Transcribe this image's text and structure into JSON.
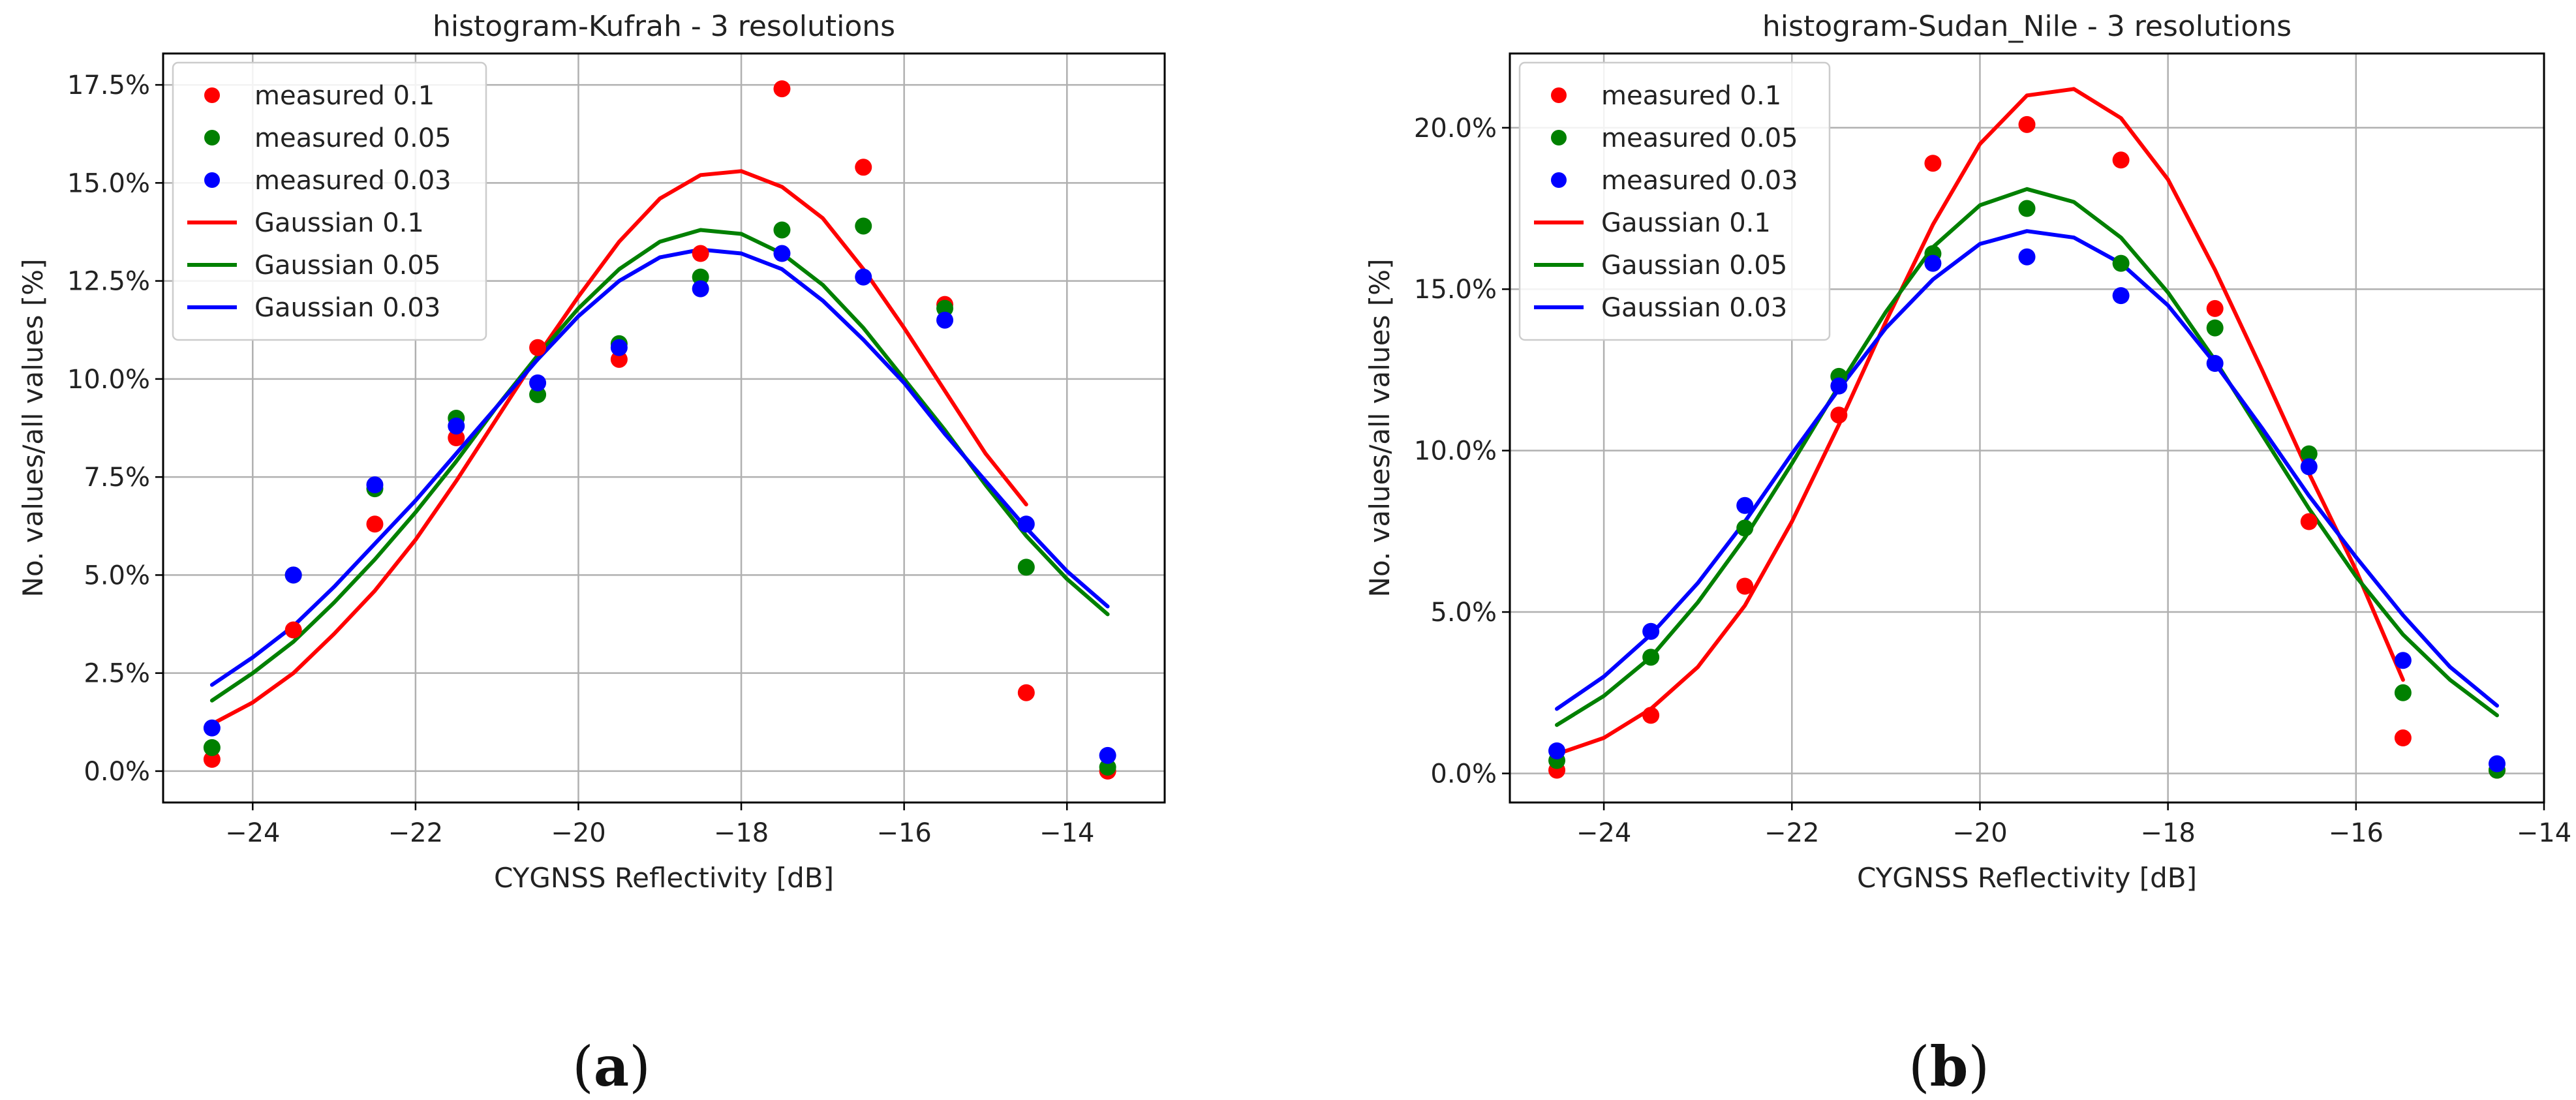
{
  "chart_data": [
    {
      "type": "scatter",
      "panel": "(a)",
      "panel_letter": "a",
      "title": "histogram-Kufrah - 3 resolutions",
      "xlabel": "CYGNSS Reflectivity [dB]",
      "ylabel": "No. values/all values [%]",
      "xlim": [
        -25.1,
        -12.8
      ],
      "ylim": [
        -0.8,
        18.3
      ],
      "xticks": [
        -24,
        -22,
        -20,
        -18,
        -16,
        -14
      ],
      "yticks": [
        0,
        2.5,
        5,
        7.5,
        10,
        12.5,
        15,
        17.5
      ],
      "ytick_labels": [
        "0.0%",
        "2.5%",
        "5.0%",
        "7.5%",
        "10.0%",
        "12.5%",
        "15.0%",
        "17.5%"
      ],
      "grid": true,
      "legend_position": "top-left",
      "series": [
        {
          "name": "measured 0.1",
          "kind": "points",
          "color": "#ff0000",
          "x": [
            -24.5,
            -23.5,
            -22.5,
            -21.5,
            -20.5,
            -19.5,
            -18.5,
            -17.5,
            -16.5,
            -15.5,
            -14.5,
            -13.5
          ],
          "y": [
            0.3,
            3.6,
            6.3,
            8.5,
            10.8,
            10.5,
            13.2,
            17.4,
            15.4,
            11.9,
            2.0,
            0.0
          ]
        },
        {
          "name": "measured 0.05",
          "kind": "points",
          "color": "#008000",
          "x": [
            -24.5,
            -23.5,
            -22.5,
            -21.5,
            -20.5,
            -19.5,
            -18.5,
            -17.5,
            -16.5,
            -15.5,
            -14.5,
            -13.5
          ],
          "y": [
            0.6,
            5.0,
            7.2,
            9.0,
            9.6,
            10.9,
            12.6,
            13.8,
            13.9,
            11.8,
            5.2,
            0.1
          ]
        },
        {
          "name": "measured 0.03",
          "kind": "points",
          "color": "#0000ff",
          "x": [
            -24.5,
            -23.5,
            -22.5,
            -21.5,
            -20.5,
            -19.5,
            -18.5,
            -17.5,
            -16.5,
            -15.5,
            -14.5,
            -13.5
          ],
          "y": [
            1.1,
            5.0,
            7.3,
            8.8,
            9.9,
            10.8,
            12.3,
            13.2,
            12.6,
            11.5,
            6.3,
            0.4
          ]
        },
        {
          "name": "Gaussian 0.1",
          "kind": "line",
          "color": "#ff0000",
          "x": [
            -24.5,
            -24.0,
            -23.5,
            -23.0,
            -22.5,
            -22.0,
            -21.5,
            -21.0,
            -20.5,
            -20.0,
            -19.5,
            -19.0,
            -18.5,
            -18.0,
            -17.5,
            -17.0,
            -16.5,
            -16.0,
            -15.5,
            -15.0,
            -14.5
          ],
          "y": [
            1.2,
            1.75,
            2.5,
            3.5,
            4.6,
            5.9,
            7.4,
            9.0,
            10.6,
            12.1,
            13.5,
            14.6,
            15.2,
            15.3,
            14.9,
            14.1,
            12.8,
            11.3,
            9.7,
            8.1,
            6.8
          ]
        },
        {
          "name": "Gaussian 0.05",
          "kind": "line",
          "color": "#008000",
          "x": [
            -24.5,
            -24.0,
            -23.5,
            -23.0,
            -22.5,
            -22.0,
            -21.5,
            -21.0,
            -20.5,
            -20.0,
            -19.5,
            -19.0,
            -18.5,
            -18.0,
            -17.5,
            -17.0,
            -16.5,
            -16.0,
            -15.5,
            -15.0,
            -14.5,
            -14.0,
            -13.5
          ],
          "y": [
            1.8,
            2.5,
            3.3,
            4.3,
            5.4,
            6.6,
            7.9,
            9.3,
            10.6,
            11.8,
            12.8,
            13.5,
            13.8,
            13.7,
            13.2,
            12.4,
            11.3,
            10.0,
            8.7,
            7.3,
            6.0,
            4.9,
            4.0
          ]
        },
        {
          "name": "Gaussian 0.03",
          "kind": "line",
          "color": "#0000ff",
          "x": [
            -24.5,
            -24.0,
            -23.5,
            -23.0,
            -22.5,
            -22.0,
            -21.5,
            -21.0,
            -20.5,
            -20.0,
            -19.5,
            -19.0,
            -18.5,
            -18.0,
            -17.5,
            -17.0,
            -16.5,
            -16.0,
            -15.5,
            -15.0,
            -14.5,
            -14.0,
            -13.5
          ],
          "y": [
            2.2,
            2.9,
            3.7,
            4.7,
            5.8,
            6.9,
            8.1,
            9.3,
            10.5,
            11.6,
            12.5,
            13.1,
            13.3,
            13.2,
            12.8,
            12.0,
            11.0,
            9.9,
            8.6,
            7.4,
            6.2,
            5.1,
            4.2
          ]
        }
      ]
    },
    {
      "type": "scatter",
      "panel": "(b)",
      "panel_letter": "b",
      "title": "histogram-Sudan_Nile - 3 resolutions",
      "xlabel": "CYGNSS Reflectivity [dB]",
      "ylabel": "No. values/all values [%]",
      "xlim": [
        -25.0,
        -14.0
      ],
      "ylim": [
        -0.9,
        22.3
      ],
      "xticks": [
        -24,
        -22,
        -20,
        -18,
        -16,
        -14
      ],
      "yticks": [
        0,
        5,
        10,
        15,
        20
      ],
      "ytick_labels": [
        "0.0%",
        "5.0%",
        "10.0%",
        "15.0%",
        "20.0%"
      ],
      "grid": true,
      "legend_position": "top-left",
      "series": [
        {
          "name": "measured 0.1",
          "kind": "points",
          "color": "#ff0000",
          "x": [
            -24.5,
            -23.5,
            -22.5,
            -21.5,
            -20.5,
            -19.5,
            -18.5,
            -17.5,
            -16.5,
            -15.5,
            -14.5
          ],
          "y": [
            0.1,
            1.8,
            5.8,
            11.1,
            18.9,
            20.1,
            19.0,
            14.4,
            7.8,
            1.1,
            0.1
          ]
        },
        {
          "name": "measured 0.05",
          "kind": "points",
          "color": "#008000",
          "x": [
            -24.5,
            -23.5,
            -22.5,
            -21.5,
            -20.5,
            -19.5,
            -18.5,
            -17.5,
            -16.5,
            -15.5,
            -14.5
          ],
          "y": [
            0.4,
            3.6,
            7.6,
            12.3,
            16.1,
            17.5,
            15.8,
            13.8,
            9.9,
            2.5,
            0.1
          ]
        },
        {
          "name": "measured 0.03",
          "kind": "points",
          "color": "#0000ff",
          "x": [
            -24.5,
            -23.5,
            -22.5,
            -21.5,
            -20.5,
            -19.5,
            -18.5,
            -17.5,
            -16.5,
            -15.5,
            -14.5
          ],
          "y": [
            0.7,
            4.4,
            8.3,
            12.0,
            15.8,
            16.0,
            14.8,
            12.7,
            9.5,
            3.5,
            0.3
          ]
        },
        {
          "name": "Gaussian 0.1",
          "kind": "line",
          "color": "#ff0000",
          "x": [
            -24.5,
            -24.0,
            -23.5,
            -23.0,
            -22.5,
            -22.0,
            -21.5,
            -21.0,
            -20.5,
            -20.0,
            -19.5,
            -19.0,
            -18.5,
            -18.0,
            -17.5,
            -17.0,
            -16.5,
            -16.0,
            -15.5
          ],
          "y": [
            0.6,
            1.1,
            2.0,
            3.3,
            5.2,
            7.8,
            10.8,
            14.0,
            17.0,
            19.5,
            21.0,
            21.2,
            20.3,
            18.4,
            15.6,
            12.5,
            9.3,
            6.3,
            2.9
          ]
        },
        {
          "name": "Gaussian 0.05",
          "kind": "line",
          "color": "#008000",
          "x": [
            -24.5,
            -24.0,
            -23.5,
            -23.0,
            -22.5,
            -22.0,
            -21.5,
            -21.0,
            -20.5,
            -20.0,
            -19.5,
            -19.0,
            -18.5,
            -18.0,
            -17.5,
            -17.0,
            -16.5,
            -16.0,
            -15.5,
            -15.0,
            -14.5
          ],
          "y": [
            1.5,
            2.4,
            3.6,
            5.3,
            7.3,
            9.6,
            12.0,
            14.3,
            16.3,
            17.6,
            18.1,
            17.7,
            16.6,
            14.9,
            12.8,
            10.5,
            8.2,
            6.1,
            4.3,
            2.9,
            1.8
          ]
        },
        {
          "name": "Gaussian 0.03",
          "kind": "line",
          "color": "#0000ff",
          "x": [
            -24.5,
            -24.0,
            -23.5,
            -23.0,
            -22.5,
            -22.0,
            -21.5,
            -21.0,
            -20.5,
            -20.0,
            -19.5,
            -19.0,
            -18.5,
            -18.0,
            -17.5,
            -17.0,
            -16.5,
            -16.0,
            -15.5,
            -15.0,
            -14.5
          ],
          "y": [
            2.0,
            3.0,
            4.3,
            5.9,
            7.8,
            9.9,
            11.9,
            13.8,
            15.3,
            16.4,
            16.8,
            16.6,
            15.8,
            14.5,
            12.7,
            10.7,
            8.6,
            6.7,
            4.9,
            3.3,
            2.1
          ]
        }
      ]
    }
  ]
}
